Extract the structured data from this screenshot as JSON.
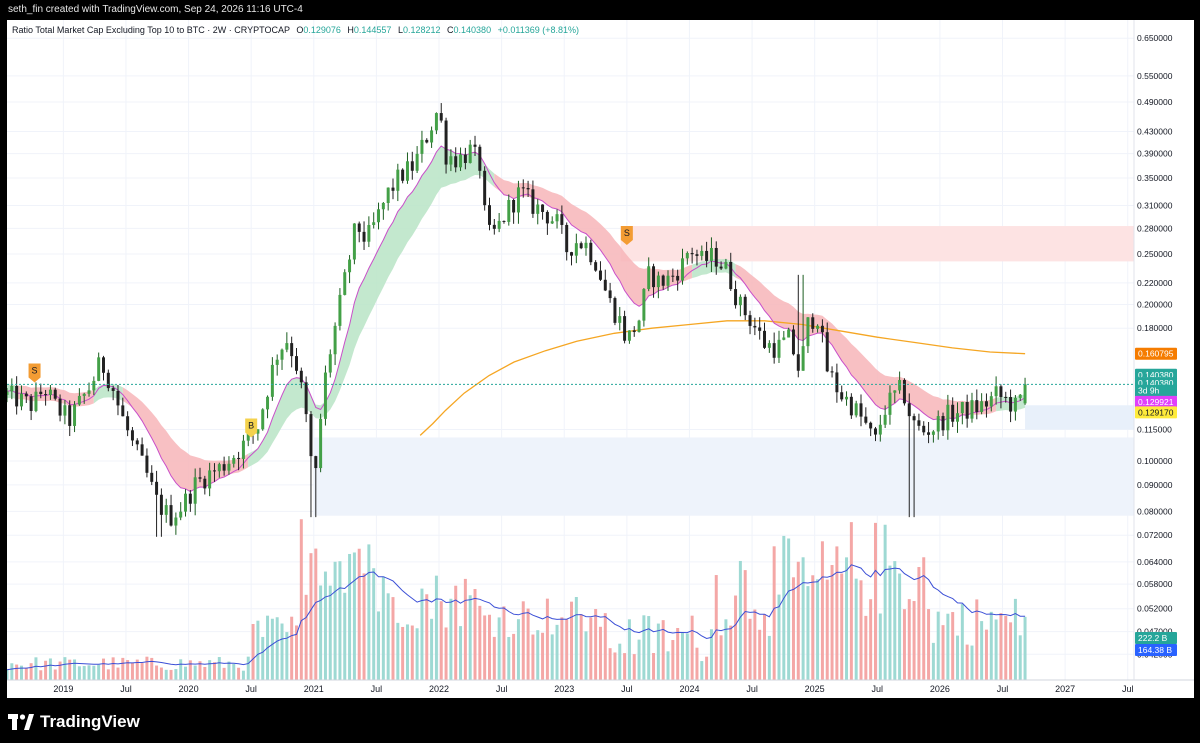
{
  "header": {
    "credit": "seth_fin created with TradingView.com, Sep 24, 2026 11:16 UTC-4"
  },
  "legend": {
    "symbol": "Ratio Total Market Cap Excluding Top 10 to BTC · 2W · CRYPTOCAP",
    "o_label": "O",
    "o_value": "0.129076",
    "h_label": "H",
    "h_value": "0.144557",
    "l_label": "L",
    "l_value": "0.128212",
    "c_label": "C",
    "c_value": "0.140380",
    "change": "+0.011369 (+8.81%)"
  },
  "footer": {
    "brand": "TradingView"
  },
  "colors": {
    "up": "#26a69a",
    "down": "#ef5350",
    "ema_fast": "#c94fc9",
    "ma_long": "#f5a623",
    "ribbon_bull": "#b9e4c5",
    "ribbon_bear": "#f7b5b8",
    "zone_red": "#fde3e3",
    "zone_blue": "#e6eef9",
    "vol_up": "#9ed9d3",
    "vol_down": "#f4a7a6",
    "vol_ma": "#3b4fd6"
  },
  "chart_data": {
    "type": "candlestick",
    "title": "Ratio Total Market Cap Excluding Top 10 to BTC · 2W · CRYPTOCAP",
    "yscale": "log",
    "ylim": [
      0.04,
      0.68
    ],
    "xlim": [
      2018.55,
      2027.55
    ],
    "y_ticks": [
      "0.650000",
      "0.550000",
      "0.490000",
      "0.430000",
      "0.390000",
      "0.350000",
      "0.310000",
      "0.280000",
      "0.250000",
      "0.220000",
      "0.200000",
      "0.180000",
      "0.115000",
      "0.100000",
      "0.090000",
      "0.080000",
      "0.072000",
      "0.064000",
      "0.058000",
      "0.052000",
      "0.047000",
      "0.042500"
    ],
    "x_ticks": [
      {
        "label": "2019",
        "t": 2019.0
      },
      {
        "label": "Jul",
        "t": 2019.5
      },
      {
        "label": "2020",
        "t": 2020.0
      },
      {
        "label": "Jul",
        "t": 2020.5
      },
      {
        "label": "2021",
        "t": 2021.0
      },
      {
        "label": "Jul",
        "t": 2021.5
      },
      {
        "label": "2022",
        "t": 2022.0
      },
      {
        "label": "Jul",
        "t": 2022.5
      },
      {
        "label": "2023",
        "t": 2023.0
      },
      {
        "label": "Jul",
        "t": 2023.5
      },
      {
        "label": "2024",
        "t": 2024.0
      },
      {
        "label": "Jul",
        "t": 2024.5
      },
      {
        "label": "2025",
        "t": 2025.0
      },
      {
        "label": "Jul",
        "t": 2025.5
      },
      {
        "label": "2026",
        "t": 2026.0
      },
      {
        "label": "Jul",
        "t": 2026.5
      },
      {
        "label": "2027",
        "t": 2027.0
      },
      {
        "label": "Jul",
        "t": 2027.5
      }
    ],
    "price_path": [
      [
        2018.55,
        0.134
      ],
      [
        2018.75,
        0.128
      ],
      [
        2018.85,
        0.138
      ],
      [
        2018.95,
        0.126
      ],
      [
        2019.05,
        0.12
      ],
      [
        2019.12,
        0.128
      ],
      [
        2019.22,
        0.14
      ],
      [
        2019.3,
        0.155
      ],
      [
        2019.38,
        0.142
      ],
      [
        2019.45,
        0.125
      ],
      [
        2019.55,
        0.108
      ],
      [
        2019.65,
        0.096
      ],
      [
        2019.75,
        0.083
      ],
      [
        2019.85,
        0.078
      ],
      [
        2019.95,
        0.082
      ],
      [
        2020.05,
        0.09
      ],
      [
        2020.15,
        0.094
      ],
      [
        2020.25,
        0.097
      ],
      [
        2020.35,
        0.102
      ],
      [
        2020.45,
        0.108
      ],
      [
        2020.55,
        0.116
      ],
      [
        2020.62,
        0.135
      ],
      [
        2020.7,
        0.16
      ],
      [
        2020.78,
        0.172
      ],
      [
        2020.85,
        0.158
      ],
      [
        2020.92,
        0.13
      ],
      [
        2020.97,
        0.106
      ],
      [
        2021.0,
        0.085
      ],
      [
        2021.05,
        0.118
      ],
      [
        2021.1,
        0.15
      ],
      [
        2021.18,
        0.185
      ],
      [
        2021.26,
        0.23
      ],
      [
        2021.34,
        0.285
      ],
      [
        2021.42,
        0.265
      ],
      [
        2021.5,
        0.29
      ],
      [
        2021.6,
        0.33
      ],
      [
        2021.7,
        0.355
      ],
      [
        2021.8,
        0.37
      ],
      [
        2021.9,
        0.42
      ],
      [
        2022.0,
        0.48
      ],
      [
        2022.05,
        0.39
      ],
      [
        2022.15,
        0.38
      ],
      [
        2022.25,
        0.395
      ],
      [
        2022.33,
        0.37
      ],
      [
        2022.38,
        0.27
      ],
      [
        2022.45,
        0.275
      ],
      [
        2022.55,
        0.305
      ],
      [
        2022.65,
        0.33
      ],
      [
        2022.75,
        0.31
      ],
      [
        2022.85,
        0.3
      ],
      [
        2022.95,
        0.285
      ],
      [
        2023.02,
        0.255
      ],
      [
        2023.1,
        0.265
      ],
      [
        2023.18,
        0.26
      ],
      [
        2023.26,
        0.24
      ],
      [
        2023.35,
        0.205
      ],
      [
        2023.45,
        0.185
      ],
      [
        2023.5,
        0.17
      ],
      [
        2023.6,
        0.188
      ],
      [
        2023.68,
        0.23
      ],
      [
        2023.76,
        0.22
      ],
      [
        2023.85,
        0.225
      ],
      [
        2023.95,
        0.24
      ],
      [
        2024.0,
        0.258
      ],
      [
        2024.1,
        0.242
      ],
      [
        2024.2,
        0.248
      ],
      [
        2024.3,
        0.232
      ],
      [
        2024.4,
        0.2
      ],
      [
        2024.5,
        0.185
      ],
      [
        2024.6,
        0.168
      ],
      [
        2024.7,
        0.165
      ],
      [
        2024.8,
        0.172
      ],
      [
        2024.88,
        0.148
      ],
      [
        2024.95,
        0.185
      ],
      [
        2025.02,
        0.192
      ],
      [
        2025.1,
        0.15
      ],
      [
        2025.2,
        0.135
      ],
      [
        2025.3,
        0.128
      ],
      [
        2025.4,
        0.118
      ],
      [
        2025.48,
        0.108
      ],
      [
        2025.55,
        0.125
      ],
      [
        2025.62,
        0.132
      ],
      [
        2025.7,
        0.138
      ],
      [
        2025.78,
        0.118
      ],
      [
        2025.86,
        0.114
      ],
      [
        2025.95,
        0.116
      ],
      [
        2026.05,
        0.122
      ],
      [
        2026.15,
        0.124
      ],
      [
        2026.25,
        0.126
      ],
      [
        2026.35,
        0.128
      ],
      [
        2026.45,
        0.134
      ],
      [
        2026.55,
        0.13
      ],
      [
        2026.62,
        0.126
      ],
      [
        2026.68,
        0.14
      ]
    ],
    "long_ma_path": [
      [
        2021.85,
        0.112
      ],
      [
        2021.95,
        0.118
      ],
      [
        2022.05,
        0.125
      ],
      [
        2022.2,
        0.135
      ],
      [
        2022.4,
        0.146
      ],
      [
        2022.6,
        0.155
      ],
      [
        2022.85,
        0.163
      ],
      [
        2023.1,
        0.17
      ],
      [
        2023.4,
        0.176
      ],
      [
        2023.7,
        0.18
      ],
      [
        2024.0,
        0.183
      ],
      [
        2024.3,
        0.186
      ],
      [
        2024.6,
        0.186
      ],
      [
        2024.9,
        0.183
      ],
      [
        2025.2,
        0.178
      ],
      [
        2025.5,
        0.173
      ],
      [
        2025.8,
        0.169
      ],
      [
        2026.1,
        0.165
      ],
      [
        2026.4,
        0.162
      ],
      [
        2026.68,
        0.1608
      ]
    ],
    "signals": [
      {
        "label": "S",
        "t": 2018.77,
        "y": 0.148,
        "color": "#f39c33"
      },
      {
        "label": "B",
        "t": 2020.5,
        "y": 0.116,
        "color": "#f4d24d"
      },
      {
        "label": "S",
        "t": 2023.5,
        "y": 0.272,
        "color": "#f39c33"
      }
    ],
    "zones": [
      {
        "t0": 2023.45,
        "t1": 2027.55,
        "y0": 0.242,
        "y1": 0.283,
        "color": "#fde3e3"
      },
      {
        "t0": 2021.0,
        "t1": 2027.55,
        "y0": 0.0785,
        "y1": 0.111,
        "color": "#eef3fb"
      },
      {
        "t0": 2026.68,
        "t1": 2027.55,
        "y0": 0.115,
        "y1": 0.128,
        "color": "#e8f0fa"
      }
    ],
    "price_labels": [
      {
        "text": "0.160795",
        "y": 0.1608,
        "bg": "#f57c00",
        "fg": "#ffffff"
      },
      {
        "text": "0.140380",
        "y": 0.1465,
        "bg": "#26a69a",
        "fg": "#ffffff"
      },
      {
        "text": "0.140380",
        "y": 0.1412,
        "bg": "#26a69a",
        "fg": "#ffffff"
      },
      {
        "text": "3d 9h",
        "y": 0.1365,
        "bg": "#26a69a",
        "fg": "#ffffff"
      },
      {
        "text": "0.129921",
        "y": 0.1299,
        "bg": "#e040fb",
        "fg": "#ffffff"
      },
      {
        "text": "0.129170",
        "y": 0.124,
        "bg": "#ffeb3b",
        "fg": "#131722"
      }
    ],
    "volume_labels": [
      {
        "text": "222.2 B",
        "bg": "#26a69a",
        "fg": "#ffffff"
      },
      {
        "text": "164.38 B",
        "bg": "#2962ff",
        "fg": "#ffffff"
      }
    ],
    "current_price": 0.14038
  }
}
